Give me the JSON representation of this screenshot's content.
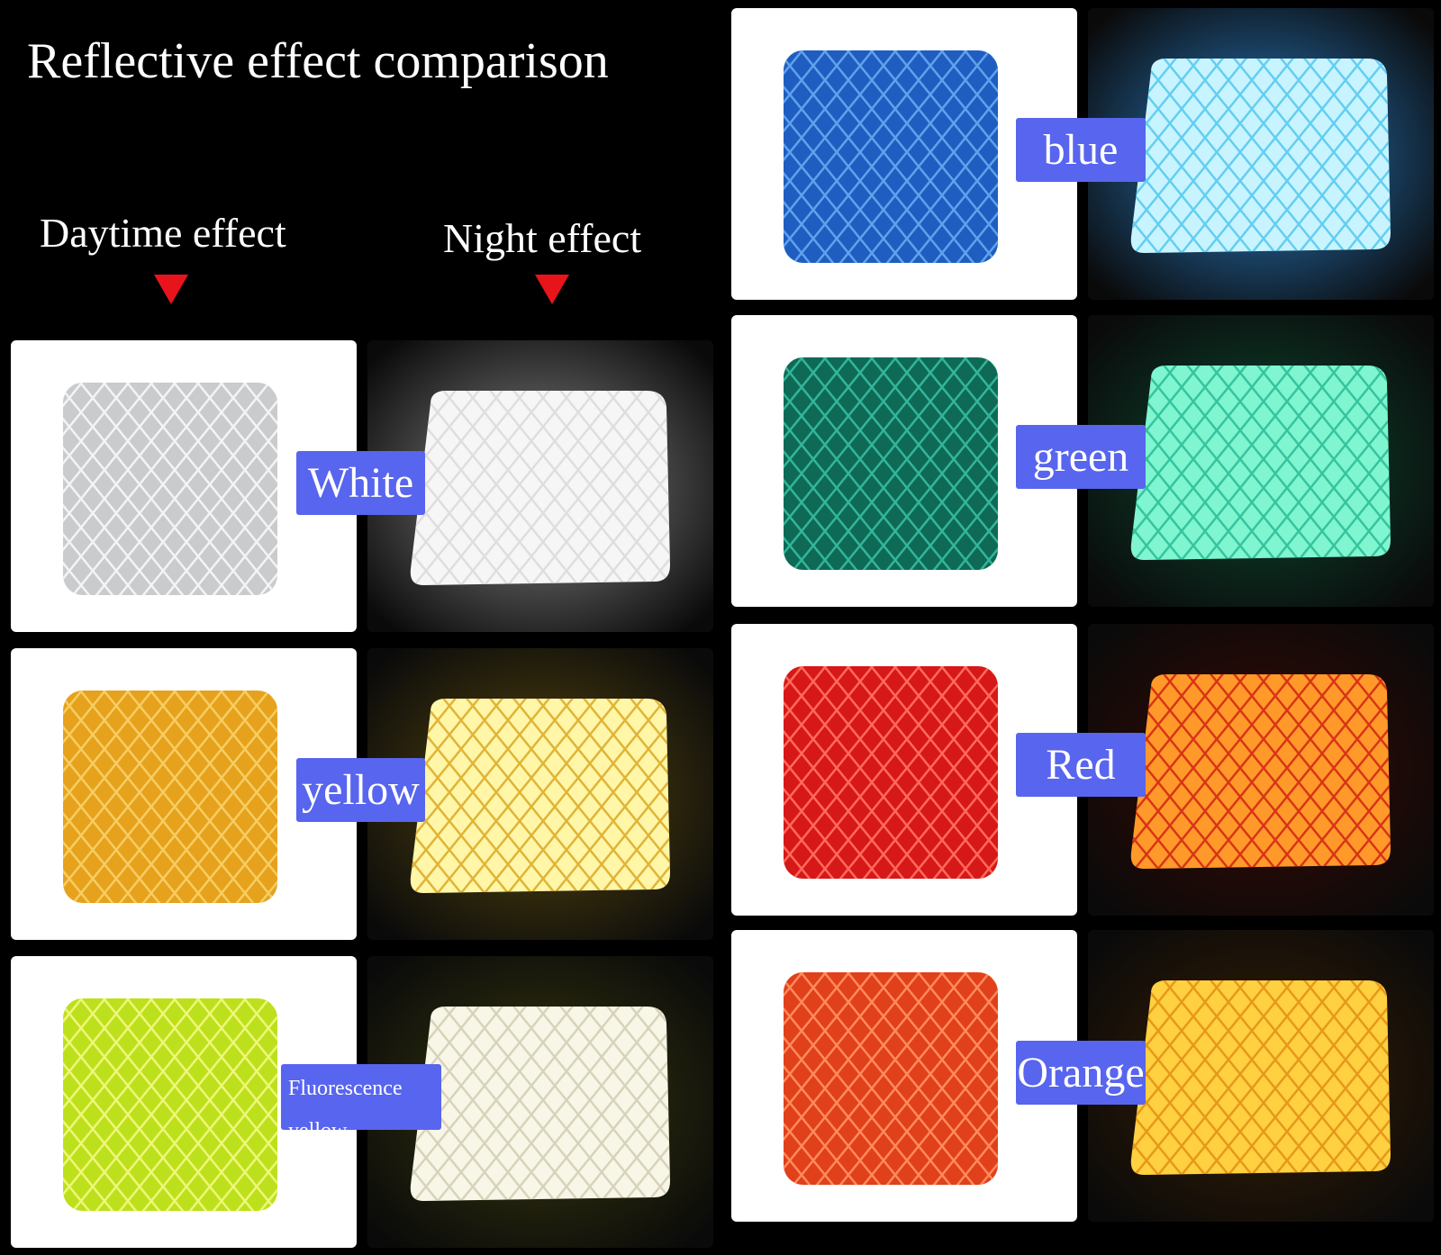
{
  "title": "Reflective effect comparison",
  "headers": {
    "day": "Daytime effect",
    "night": "Night effect"
  },
  "samples": [
    {
      "label": "White"
    },
    {
      "label": "yellow"
    },
    {
      "label": "Fluorescence yellow"
    },
    {
      "label": "blue"
    },
    {
      "label": "green"
    },
    {
      "label": "Red"
    },
    {
      "label": "Orange"
    }
  ]
}
